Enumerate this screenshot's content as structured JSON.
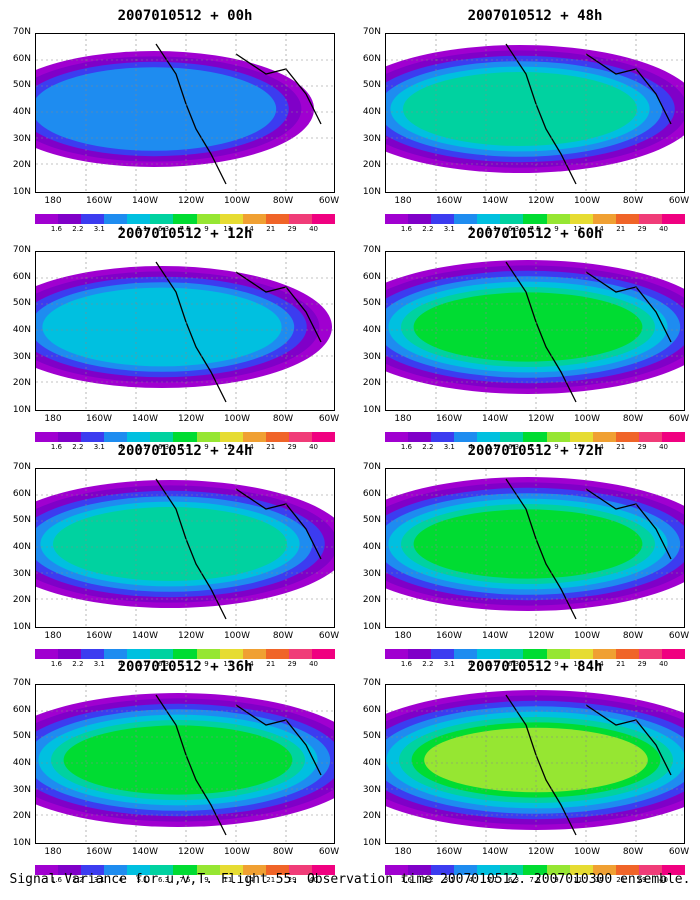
{
  "caption": "Signal Variance for u,v,T. Flight 55. Observation time 2007010512. 2007010300 ensemble.",
  "map": {
    "lat_labels": [
      "70N",
      "60N",
      "50N",
      "40N",
      "30N",
      "20N",
      "10N"
    ],
    "lon_labels": [
      "180",
      "160W",
      "140W",
      "120W",
      "100W",
      "80W",
      "60W"
    ],
    "colorbar_labels": [
      "1.6",
      "2.2",
      "3.1",
      "4",
      "5.1",
      "6.3",
      "7.5",
      "9",
      "11",
      "14",
      "21",
      "29",
      "40"
    ],
    "colorbar_colors": [
      "#a000d0",
      "#8000c8",
      "#3c3cf0",
      "#1e8cf0",
      "#00c0e0",
      "#00d2a0",
      "#00dc32",
      "#96e632",
      "#e6dc32",
      "#f0a032",
      "#f06428",
      "#f03c78",
      "#f00080"
    ]
  },
  "panels": [
    {
      "title": "2007010512 + 00h",
      "level": 1
    },
    {
      "title": "2007010512 + 48h",
      "level": 3
    },
    {
      "title": "2007010512 + 12h",
      "level": 2
    },
    {
      "title": "2007010512 + 60h",
      "level": 4
    },
    {
      "title": "2007010512 + 24h",
      "level": 3
    },
    {
      "title": "2007010512 + 72h",
      "level": 4
    },
    {
      "title": "2007010512 + 36h",
      "level": 4
    },
    {
      "title": "2007010512 + 84h",
      "level": 5
    }
  ]
}
